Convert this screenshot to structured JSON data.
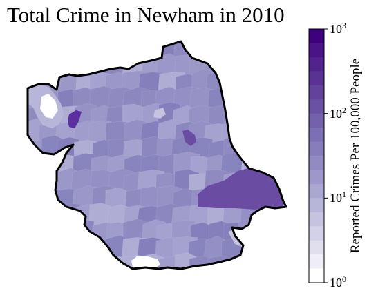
{
  "title": "Total Crime in Newham in 2010",
  "colorbar": {
    "label": "Reported Crimes Per 100,000 People",
    "scale": "log",
    "range": [
      1,
      1000
    ],
    "ticks": [
      {
        "base": "10",
        "exp": "0",
        "value": 1
      },
      {
        "base": "10",
        "exp": "1",
        "value": 10
      },
      {
        "base": "10",
        "exp": "2",
        "value": 100
      },
      {
        "base": "10",
        "exp": "3",
        "value": 1000
      }
    ],
    "colors": [
      "#ffffff",
      "#efedf5",
      "#e1dfee",
      "#d3d1e7",
      "#c5c3df",
      "#b7b5d8",
      "#aaa7d0",
      "#9d98c9",
      "#928bc2",
      "#877dbb",
      "#7d6fb4",
      "#7361ac",
      "#6a51a3",
      "#62429b",
      "#5a3294",
      "#52228d",
      "#4a1486",
      "#3f007d"
    ]
  },
  "colors": {
    "border": "#000000",
    "base_fill": "#8d89c0",
    "high_fill": "#6a4da3",
    "max_fill": "#5b2fa0",
    "low_fill": "#b7b5d8",
    "zero_fill": "#ffffff"
  }
}
